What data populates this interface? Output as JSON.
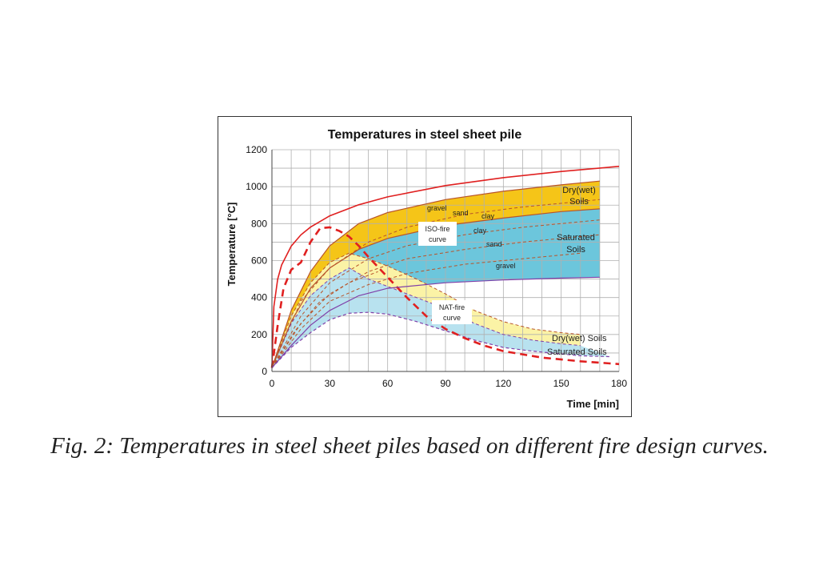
{
  "caption": "Fig. 2: Temperatures in steel sheet piles based on different fire design curves.",
  "chart_data": {
    "type": "line",
    "title": "Temperatures in steel sheet pile",
    "xlabel": "Time [min]",
    "ylabel": "Temperature [°C]",
    "xlim": [
      0,
      180
    ],
    "ylim": [
      0,
      1200
    ],
    "xticks": [
      0,
      30,
      60,
      90,
      120,
      150,
      180
    ],
    "yticks": [
      0,
      200,
      400,
      600,
      800,
      1000,
      1200
    ],
    "grid": true,
    "colors": {
      "yellow_band": "#f5c518",
      "light_yellow_band": "#fbf3a6",
      "cyan_band": "#6cc6dc",
      "light_cyan_band": "#b8e2ef",
      "fire_curve": "#e02020",
      "soil_lines": "#b8542a",
      "purple_lines": "#8040a8"
    },
    "series": [
      {
        "name": "ISO-fire curve",
        "style": "solid",
        "color": "#e02020",
        "x": [
          0,
          1,
          3,
          5,
          10,
          15,
          20,
          30,
          45,
          60,
          90,
          120,
          150,
          180
        ],
        "y": [
          20,
          350,
          500,
          576,
          678,
          739,
          781,
          842,
          902,
          945,
          1006,
          1049,
          1082,
          1110
        ]
      },
      {
        "name": "NAT-fire curve",
        "style": "dashed",
        "color": "#e02020",
        "x": [
          0,
          3,
          6,
          10,
          15,
          20,
          25,
          30,
          35,
          40,
          45,
          50,
          60,
          70,
          80,
          90,
          100,
          110,
          120,
          140,
          160,
          180
        ],
        "y": [
          20,
          250,
          450,
          550,
          590,
          700,
          775,
          780,
          760,
          730,
          680,
          620,
          510,
          400,
          300,
          230,
          180,
          140,
          110,
          75,
          55,
          40
        ]
      },
      {
        "name": "Dry(wet) Soils",
        "style": "solid",
        "color": "#b8542a",
        "x": [
          0,
          10,
          20,
          30,
          45,
          60,
          90,
          120,
          150,
          170
        ],
        "y": [
          20,
          330,
          540,
          680,
          800,
          860,
          930,
          975,
          1010,
          1030
        ]
      },
      {
        "name": "Saturated Soils",
        "style": "solid",
        "color": "#b8542a",
        "x": [
          0,
          10,
          20,
          30,
          45,
          60,
          90,
          120,
          150,
          170
        ],
        "y": [
          20,
          270,
          450,
          560,
          660,
          720,
          790,
          830,
          865,
          880
        ]
      },
      {
        "name": "Saturated Soils (NAT)",
        "style": "solid",
        "color": "#8040a8",
        "x": [
          0,
          10,
          20,
          30,
          45,
          60,
          90,
          120,
          150,
          170
        ],
        "y": [
          20,
          140,
          250,
          330,
          410,
          450,
          480,
          495,
          505,
          510
        ]
      }
    ],
    "annotations": [
      "gravel",
      "sand",
      "clay",
      "clay",
      "sand",
      "gravel",
      "ISO-fire curve",
      "NAT-fire curve",
      "Dry(wet) Soils",
      "Saturated Soils",
      "Dry(wet) Soils",
      "Saturated Soils"
    ]
  },
  "labels": {
    "gravel_top": "gravel",
    "sand_top": "sand",
    "clay_top": "clay",
    "clay_mid": "clay",
    "sand_mid": "sand",
    "gravel_mid": "gravel",
    "iso_line1": "ISO-fire",
    "iso_line2": "curve",
    "nat_line1": "NAT-fire",
    "nat_line2": "curve",
    "drywet_iso_1": "Dry(wet)",
    "drywet_iso_2": "Soils",
    "sat_iso_1": "Saturated",
    "sat_iso_2": "Soils",
    "drywet_nat": "Dry(wet) Soils",
    "sat_nat": "Saturated Soils"
  }
}
